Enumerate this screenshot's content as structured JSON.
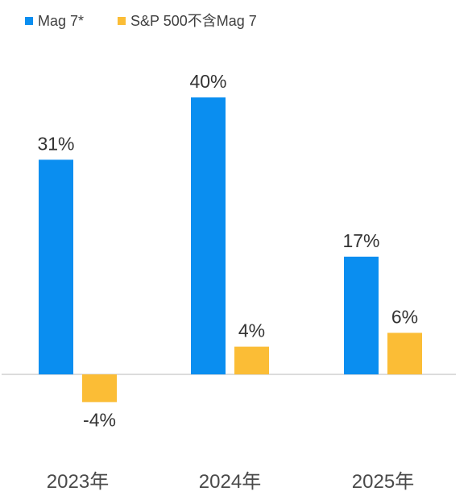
{
  "chart_data": {
    "type": "bar",
    "categories": [
      "2023年",
      "2024年",
      "2025年"
    ],
    "series": [
      {
        "name": "Mag 7*",
        "color": "#0a8ef0",
        "values": [
          31,
          40,
          17
        ],
        "labels": [
          "31%",
          "40%",
          "17%"
        ]
      },
      {
        "name": "S&P 500不含Mag 7",
        "color": "#fbbd36",
        "values": [
          -4,
          4,
          6
        ],
        "labels": [
          "-4%",
          "4%",
          "6%"
        ]
      }
    ],
    "title": "",
    "xlabel": "",
    "ylabel": "",
    "ylim": [
      -12,
      45
    ],
    "grid": false,
    "legend_position": "top-left"
  }
}
